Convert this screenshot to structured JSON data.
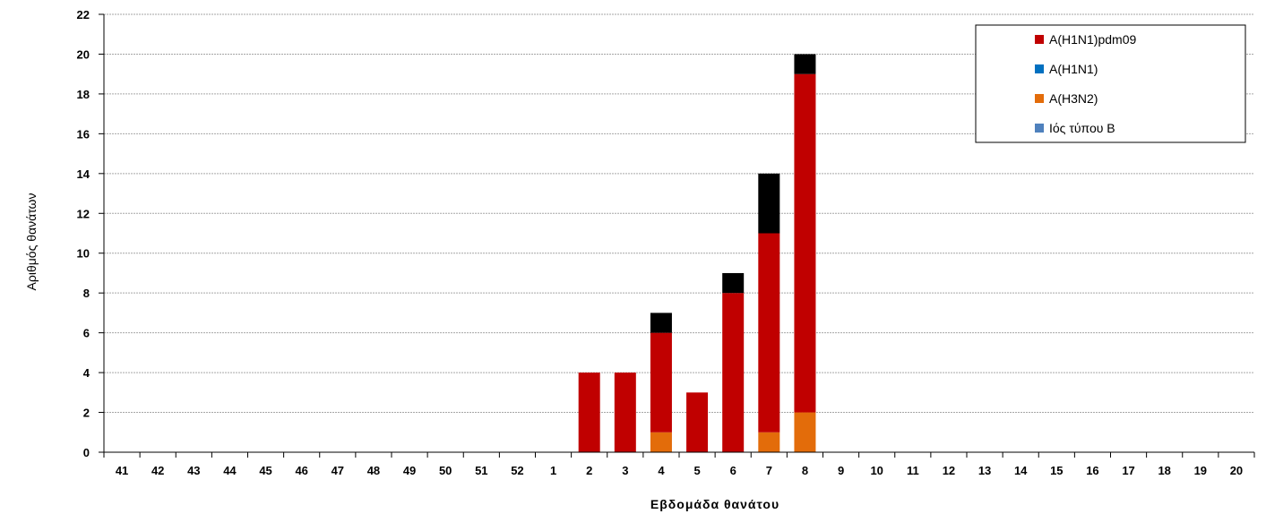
{
  "chart_data": {
    "type": "bar",
    "stacked": true,
    "categories": [
      "41",
      "42",
      "43",
      "44",
      "45",
      "46",
      "47",
      "48",
      "49",
      "50",
      "51",
      "52",
      "1",
      "2",
      "3",
      "4",
      "5",
      "6",
      "7",
      "8",
      "9",
      "10",
      "11",
      "12",
      "13",
      "14",
      "15",
      "16",
      "17",
      "18",
      "19",
      "20"
    ],
    "series": [
      {
        "name": "A(H3N2)",
        "color": "#e36c0a",
        "values": [
          0,
          0,
          0,
          0,
          0,
          0,
          0,
          0,
          0,
          0,
          0,
          0,
          0,
          0,
          0,
          1,
          0,
          0,
          1,
          2,
          0,
          0,
          0,
          0,
          0,
          0,
          0,
          0,
          0,
          0,
          0,
          0
        ]
      },
      {
        "name": "A(H1N1)pdm09",
        "color": "#c00000",
        "values": [
          0,
          0,
          0,
          0,
          0,
          0,
          0,
          0,
          0,
          0,
          0,
          0,
          0,
          4,
          4,
          5,
          3,
          8,
          10,
          17,
          0,
          0,
          0,
          0,
          0,
          0,
          0,
          0,
          0,
          0,
          0,
          0
        ]
      },
      {
        "name": "A(H1N1)",
        "color": "#0070c0",
        "values": [
          0,
          0,
          0,
          0,
          0,
          0,
          0,
          0,
          0,
          0,
          0,
          0,
          0,
          0,
          0,
          0,
          0,
          0,
          0,
          0,
          0,
          0,
          0,
          0,
          0,
          0,
          0,
          0,
          0,
          0,
          0,
          0
        ]
      },
      {
        "name": "Ιός τύπου Β",
        "color": "#4f81bd",
        "values": [
          0,
          0,
          0,
          0,
          0,
          0,
          0,
          0,
          0,
          0,
          0,
          0,
          0,
          0,
          0,
          0,
          0,
          0,
          0,
          0,
          0,
          0,
          0,
          0,
          0,
          0,
          0,
          0,
          0,
          0,
          0,
          0
        ]
      },
      {
        "color": "#000000",
        "values": [
          0,
          0,
          0,
          0,
          0,
          0,
          0,
          0,
          0,
          0,
          0,
          0,
          0,
          0,
          0,
          1,
          0,
          1,
          3,
          1,
          0,
          0,
          0,
          0,
          0,
          0,
          0,
          0,
          0,
          0,
          0,
          0
        ]
      }
    ],
    "legend_order": [
      "A(H1N1)pdm09",
      "A(H1N1)",
      "A(H3N2)",
      "Ιός τύπου Β"
    ],
    "legend_position": "top-right",
    "xlabel": "Εβδομάδα θανάτου",
    "ylabel": "Αριθμός θανάτων",
    "ylim": [
      0,
      22
    ],
    "yticks": [
      0,
      2,
      4,
      6,
      8,
      10,
      12,
      14,
      16,
      18,
      20,
      22
    ],
    "grid": true
  }
}
